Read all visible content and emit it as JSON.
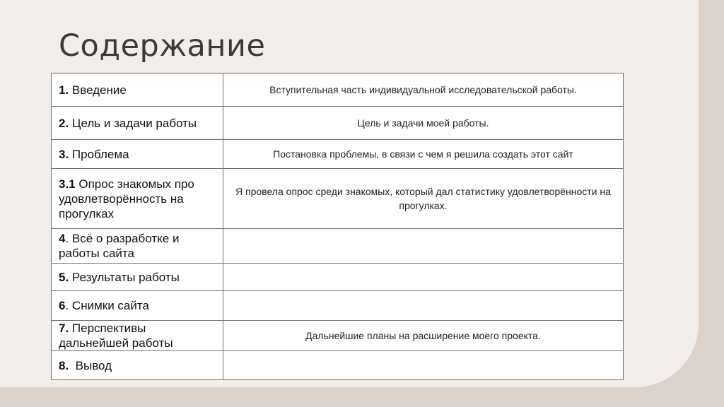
{
  "slide": {
    "title": "Содержание",
    "rows": [
      {
        "num": "1.",
        "label": " Введение",
        "desc": "Вступительная часть индивидуальной исследовательской работы."
      },
      {
        "num": "2.",
        "label": " Цель и задачи работы",
        "desc": "Цель и задачи моей работы."
      },
      {
        "num": "3.",
        "label": " Проблема",
        "desc": "Постановка проблемы, в связи с чем я решила создать этот сайт"
      },
      {
        "num": "3.1",
        "label": " Опрос знакомых про удовлетворённость на прогулках",
        "desc": "Я провела опрос среди знакомых, который дал статистику удовлетворённости на прогулках."
      },
      {
        "num": "4",
        "label": ". Всё о разработке и работы сайта",
        "desc": ""
      },
      {
        "num": "5.",
        "label": " Результаты работы",
        "desc": ""
      },
      {
        "num": "6",
        "label": ". Снимки сайта",
        "desc": ""
      },
      {
        "num": "7.",
        "label": " Перспективы дальнейшей работы",
        "desc": "Дальнейшие планы на расширение моего проекта."
      },
      {
        "num": "8.",
        "label": "  Вывод",
        "desc": ""
      }
    ]
  }
}
